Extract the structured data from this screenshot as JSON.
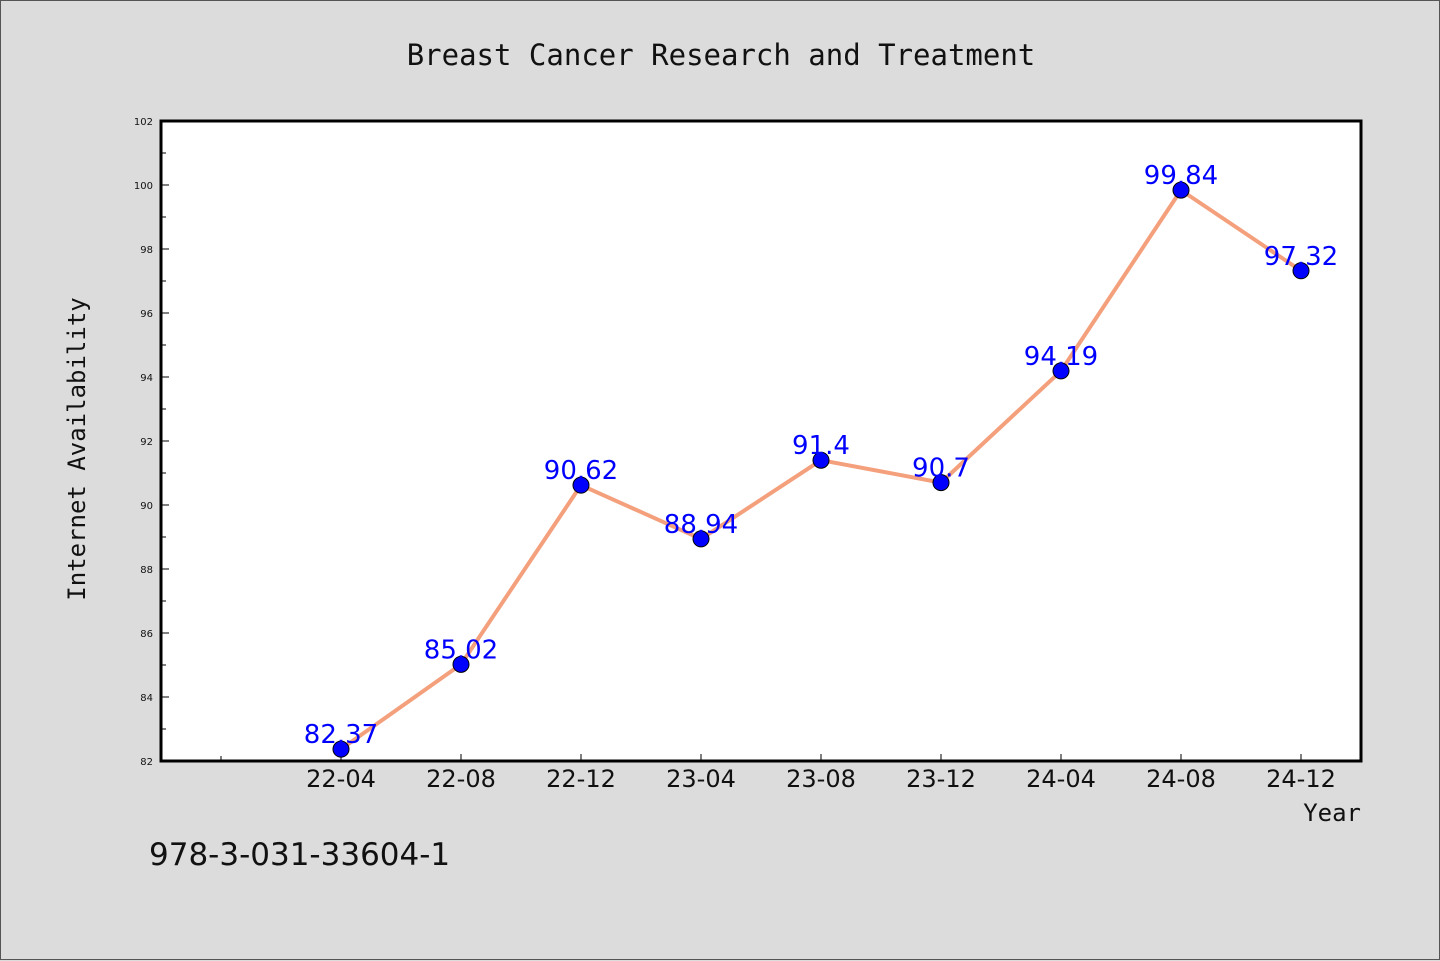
{
  "chart_data": {
    "type": "line",
    "title": "Breast Cancer Research and Treatment",
    "xlabel": "Year",
    "ylabel": "Internet Availability",
    "categories": [
      "22-04",
      "22-08",
      "22-12",
      "23-04",
      "23-08",
      "23-12",
      "24-04",
      "24-08",
      "24-12"
    ],
    "series": [
      {
        "values": [
          82.37,
          85.02,
          90.62,
          88.94,
          91.4,
          90.7,
          94.19,
          99.84,
          97.32
        ]
      }
    ],
    "data_labels": [
      "82.37",
      "85.02",
      "90.62",
      "88.94",
      "91.4",
      "90.7",
      "94.19",
      "99.84",
      "97.32"
    ],
    "ylim": [
      82,
      102
    ],
    "yticks": [
      82,
      84,
      86,
      88,
      90,
      92,
      94,
      96,
      98,
      100,
      102
    ],
    "grid": false,
    "legend": "none",
    "colors": {
      "line": "#f4a07c",
      "marker": "#0000ff",
      "data_label": "#0000ff",
      "background": "#dcdcdc",
      "plot_area": "#ffffff"
    }
  },
  "footer": {
    "text": "978-3-031-33604-1"
  }
}
